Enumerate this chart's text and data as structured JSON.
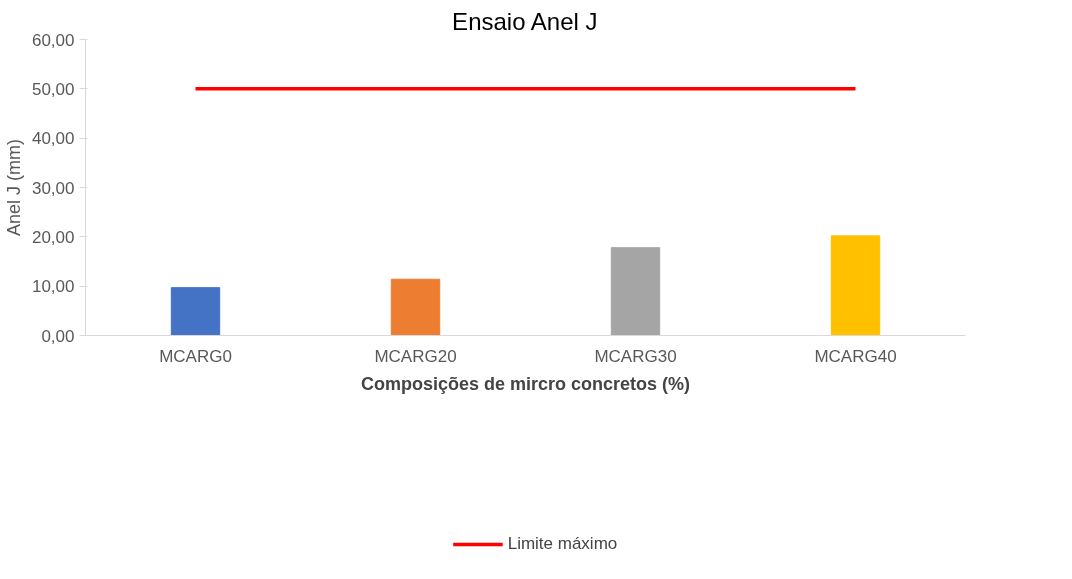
{
  "chart_data": {
    "type": "bar",
    "title": "Ensaio Anel J",
    "xlabel": "Composições de mircro concretos (%)",
    "ylabel": "Anel J (mm)",
    "categories": [
      "MCARG0",
      "MCARG20",
      "MCARG30",
      "MCARG40"
    ],
    "series": [
      {
        "colors": [
          "#4472c4",
          "#ed7d31",
          "#a5a5a5",
          "#ffc000"
        ],
        "values": [
          9.7,
          11.4,
          17.8,
          20.2
        ]
      },
      {
        "type": "line",
        "name": "Limite máximo",
        "color": "#ff0000",
        "values": [
          50,
          50,
          50,
          50
        ]
      }
    ],
    "ylim": [
      0,
      60
    ],
    "yticks": [
      {
        "value": 0,
        "label": "0,00"
      },
      {
        "value": 10,
        "label": "10,00"
      },
      {
        "value": 20,
        "label": "20,00"
      },
      {
        "value": 30,
        "label": "30,00"
      },
      {
        "value": 40,
        "label": "40,00"
      },
      {
        "value": 50,
        "label": "50,00"
      },
      {
        "value": 60,
        "label": "60,00"
      }
    ],
    "grid": false,
    "legend": "bottom",
    "marker": "none",
    "line_style": "solid"
  }
}
